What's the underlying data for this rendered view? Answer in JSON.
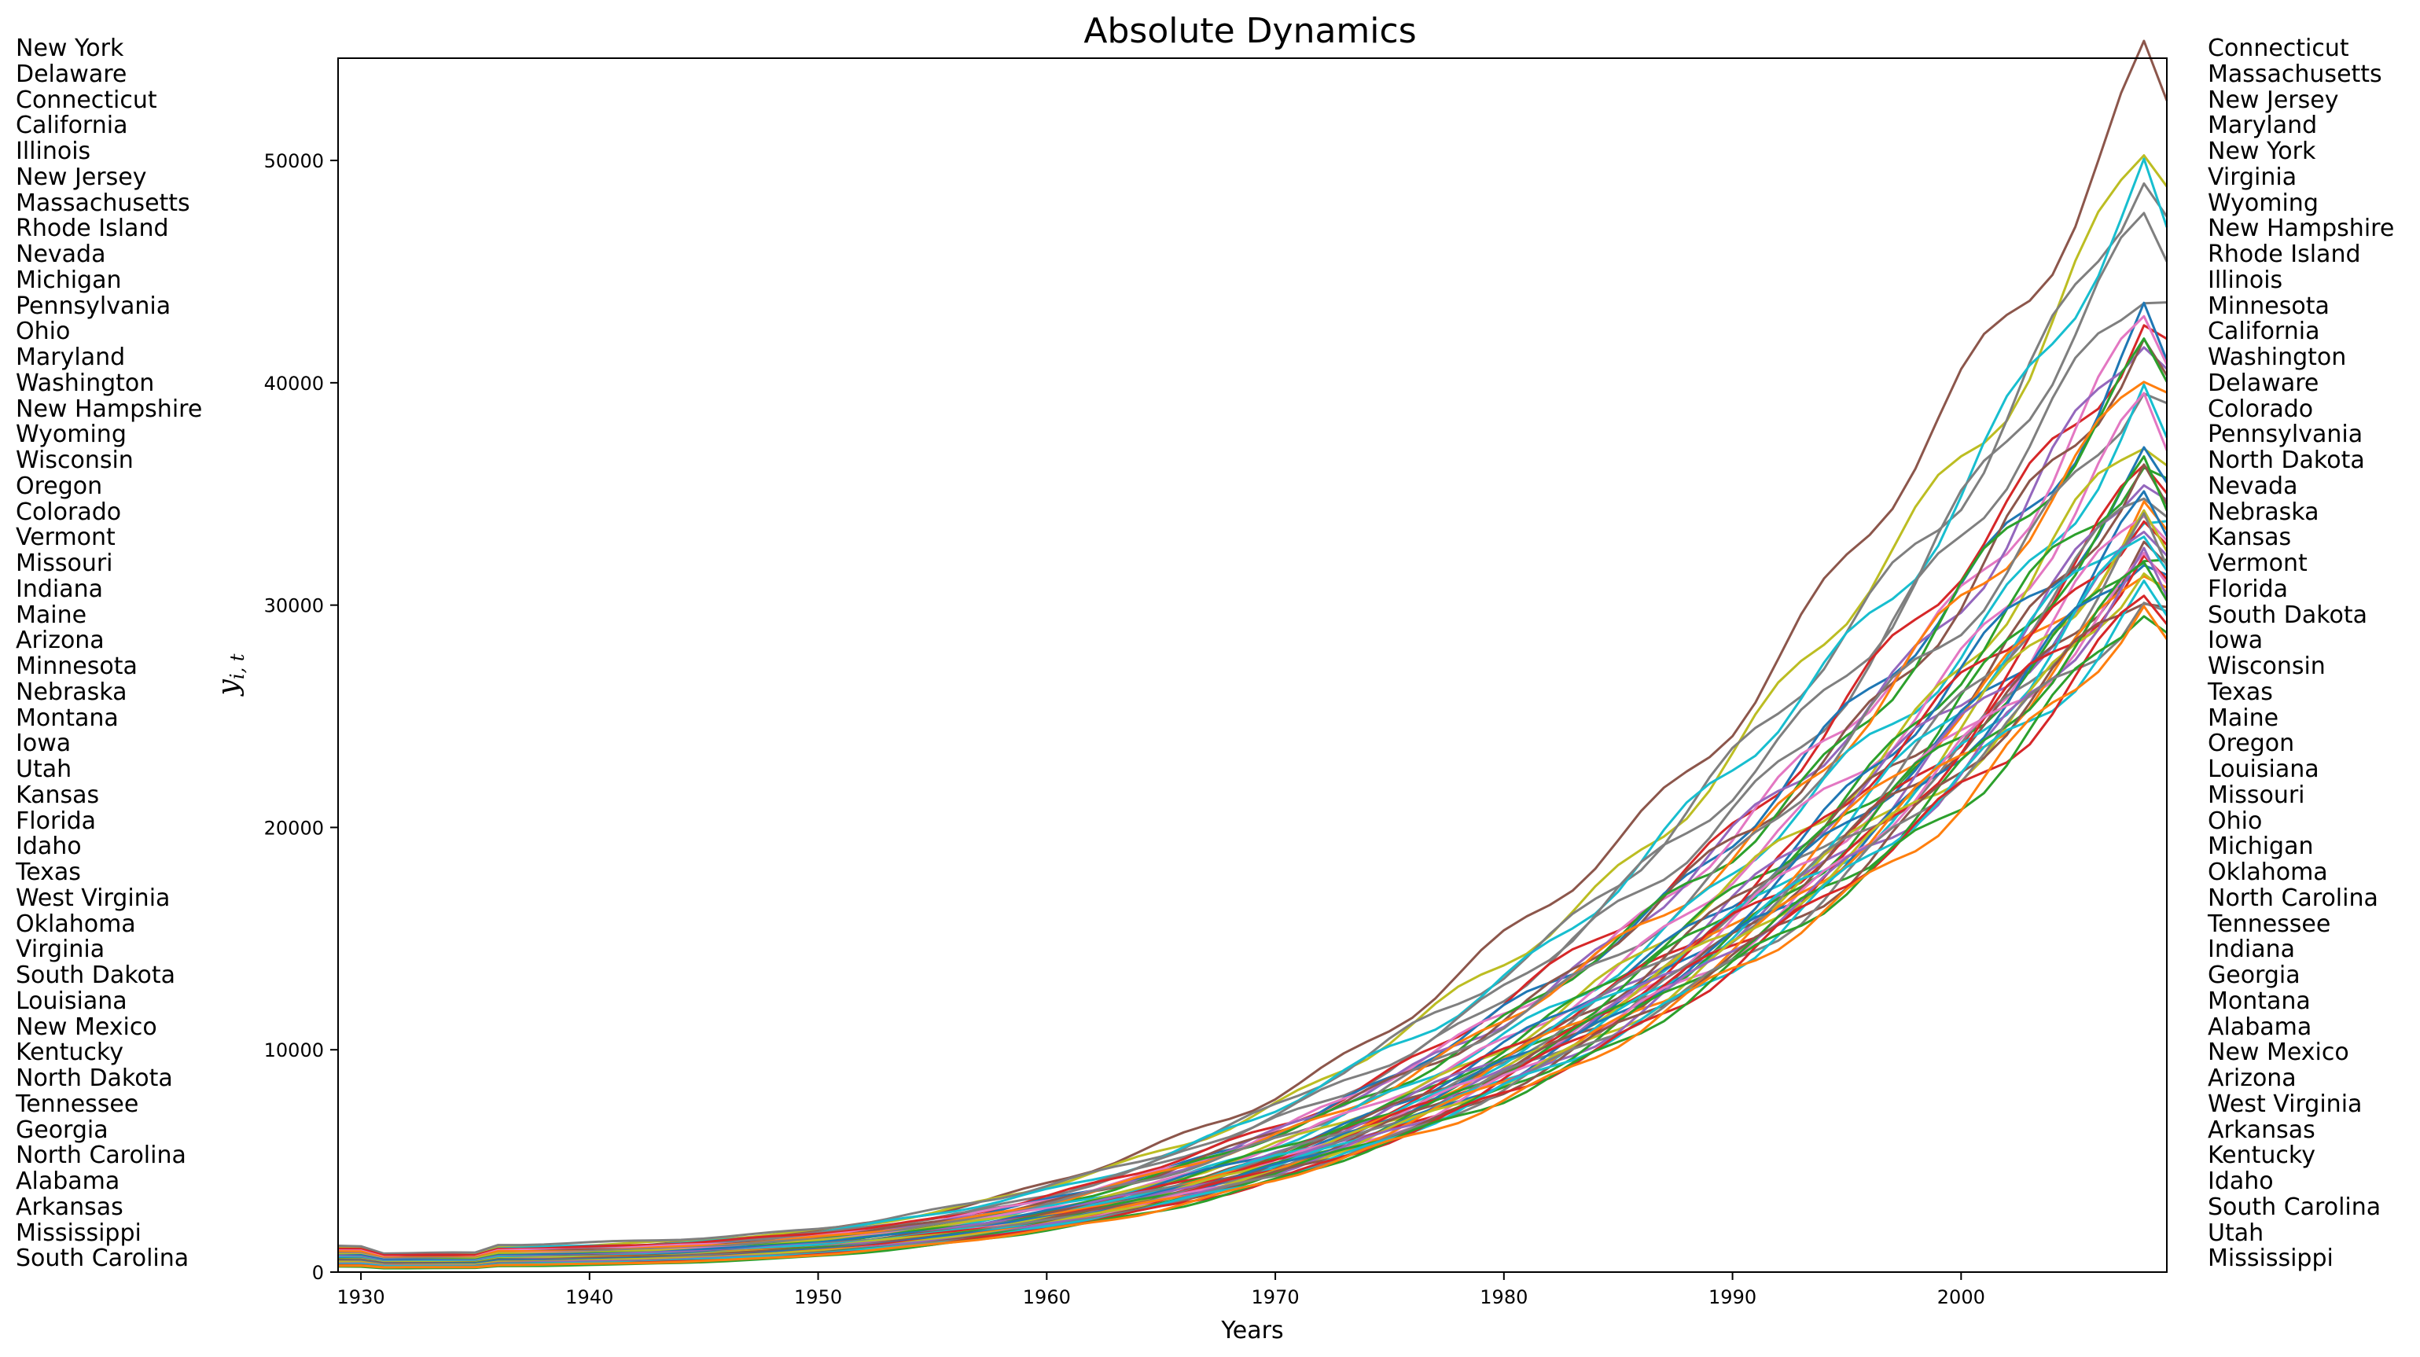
{
  "chart_data": {
    "type": "line",
    "title": "Absolute Dynamics",
    "xlabel": "Years",
    "ylabel": "y_i,t",
    "xlim": [
      1929,
      2009
    ],
    "ylim": [
      0,
      54600
    ],
    "x_ticks": [
      1930,
      1940,
      1950,
      1960,
      1970,
      1980,
      1990,
      2000
    ],
    "y_ticks": [
      0,
      10000,
      20000,
      30000,
      40000,
      50000
    ],
    "grid": false,
    "legend": "none",
    "start_rank_left": [
      "New York",
      "Delaware",
      "Connecticut",
      "California",
      "Illinois",
      "New Jersey",
      "Massachusetts",
      "Rhode Island",
      "Nevada",
      "Michigan",
      "Pennsylvania",
      "Ohio",
      "Maryland",
      "Washington",
      "New Hampshire",
      "Wyoming",
      "Wisconsin",
      "Oregon",
      "Colorado",
      "Vermont",
      "Missouri",
      "Indiana",
      "Maine",
      "Arizona",
      "Minnesota",
      "Nebraska",
      "Montana",
      "Iowa",
      "Utah",
      "Kansas",
      "Florida",
      "Idaho",
      "Texas",
      "West Virginia",
      "Oklahoma",
      "Virginia",
      "South Dakota",
      "Louisiana",
      "New Mexico",
      "Kentucky",
      "North Dakota",
      "Tennessee",
      "Georgia",
      "North Carolina",
      "Alabama",
      "Arkansas",
      "Mississippi",
      "South Carolina"
    ],
    "end_rank_right": [
      "Connecticut",
      "Massachusetts",
      "New Jersey",
      "Maryland",
      "New York",
      "Virginia",
      "Wyoming",
      "New Hampshire",
      "Rhode Island",
      "Illinois",
      "Minnesota",
      "California",
      "Washington",
      "Delaware",
      "Colorado",
      "Pennsylvania",
      "North Dakota",
      "Nevada",
      "Nebraska",
      "Kansas",
      "Vermont",
      "Florida",
      "South Dakota",
      "Iowa",
      "Wisconsin",
      "Texas",
      "Maine",
      "Oregon",
      "Louisiana",
      "Missouri",
      "Ohio",
      "Michigan",
      "Oklahoma",
      "North Carolina",
      "Tennessee",
      "Indiana",
      "Georgia",
      "Montana",
      "Alabama",
      "New Mexico",
      "Arizona",
      "West Virginia",
      "Arkansas",
      "Kentucky",
      "Idaho",
      "South Carolina",
      "Utah",
      "Mississippi"
    ],
    "series_values_1929": [
      1000,
      1100,
      1200,
      1050,
      950,
      1000,
      1050,
      900,
      950,
      850,
      900,
      800,
      900,
      850,
      750,
      800,
      800,
      750,
      750,
      650,
      700,
      650,
      600,
      650,
      650,
      600,
      600,
      550,
      600,
      600,
      550,
      550,
      550,
      500,
      450,
      500,
      450,
      400,
      450,
      450,
      400,
      350,
      350,
      350,
      350,
      300,
      250,
      300
    ],
    "series_values_2008": [
      54600,
      50600,
      49200,
      48700,
      47100,
      45200,
      43500,
      42500,
      42300,
      42100,
      41800,
      41500,
      41000,
      40500,
      38900,
      38300,
      37600,
      37000,
      36800,
      36300,
      36000,
      35800,
      35500,
      35200,
      35000,
      34600,
      34300,
      34100,
      33900,
      33600,
      33400,
      33200,
      33000,
      32900,
      32700,
      32500,
      32300,
      32100,
      31900,
      31700,
      31500,
      31300,
      31000,
      30800,
      30600,
      30200,
      29800,
      29500
    ],
    "palette": [
      "#8c564b",
      "#bcbd22",
      "#7f7f7f",
      "#17becf",
      "#7f7f7f",
      "#7f7f7f",
      "#d62728",
      "#1f77b4",
      "#e377c2",
      "#9467bd",
      "#8c564b",
      "#2ca02c",
      "#ff7f0e",
      "#7f7f7f",
      "#17becf",
      "#e377c2",
      "#bcbd22",
      "#2ca02c",
      "#1f77b4",
      "#d62728",
      "#9467bd",
      "#8c564b",
      "#2ca02c",
      "#7f7f7f",
      "#17becf",
      "#ff7f0e",
      "#1f77b4",
      "#e377c2",
      "#d62728",
      "#bcbd22",
      "#9467bd",
      "#2ca02c",
      "#8c564b",
      "#7f7f7f",
      "#17becf",
      "#1f77b4",
      "#d62728",
      "#e377c2",
      "#ff7f0e",
      "#bcbd22",
      "#9467bd",
      "#2ca02c",
      "#8c564b",
      "#7f7f7f",
      "#17becf",
      "#d62728",
      "#2ca02c",
      "#ff7f0e"
    ]
  }
}
